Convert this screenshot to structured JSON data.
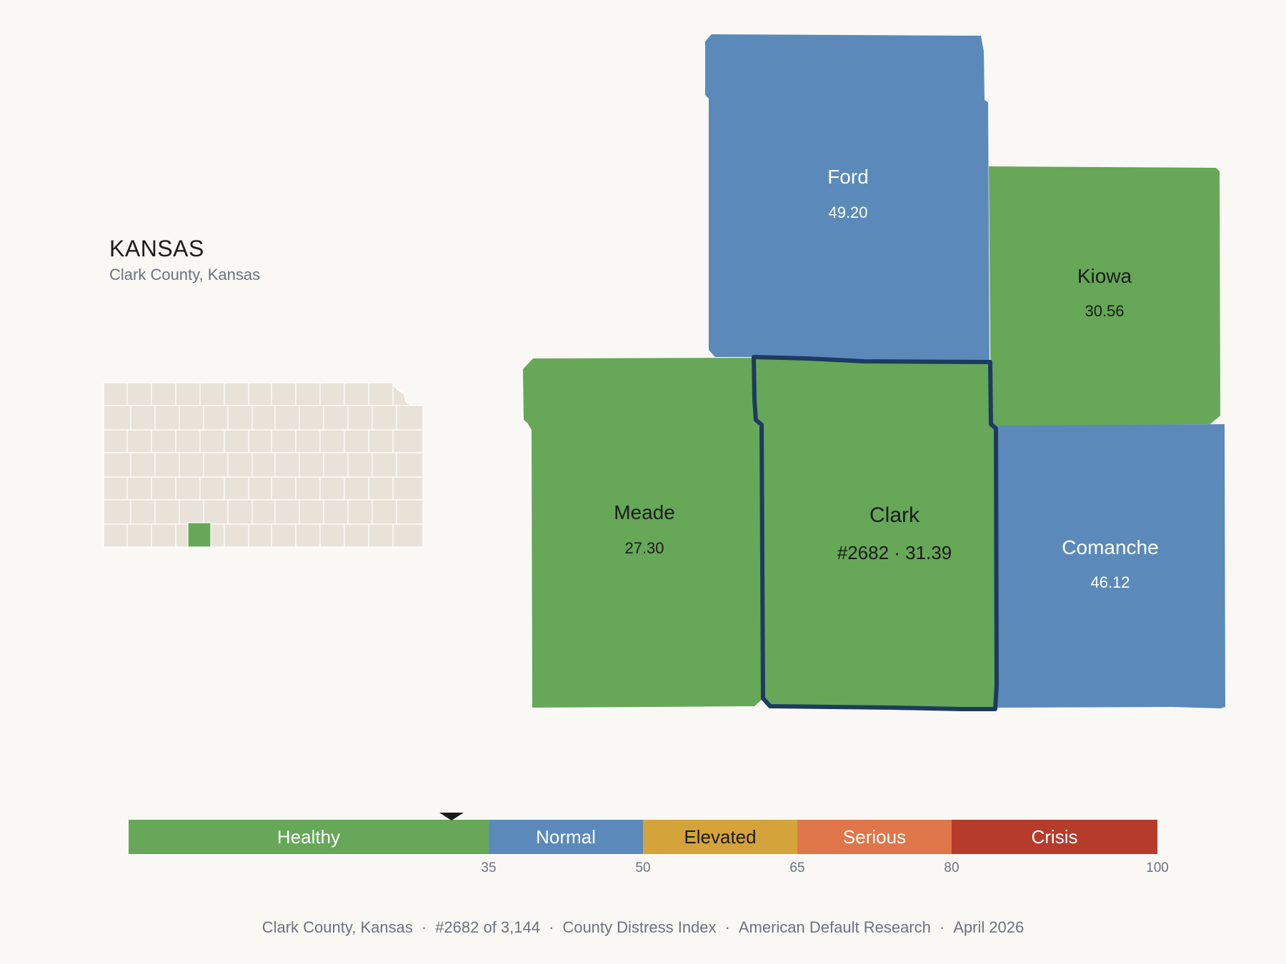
{
  "state": {
    "title": "KANSAS",
    "subtitle": "Clark County, Kansas"
  },
  "selected_county": "Clark",
  "colors": {
    "healthy": "#66a758",
    "normal": "#5b8aba",
    "elevated": "#d4a33a",
    "serious": "#de7649",
    "crisis": "#b73b2b",
    "selected_outline": "#1e3a5f",
    "locator_base": "#e8e2d8",
    "background": "#f9f8f5"
  },
  "counties": [
    {
      "name": "Ford",
      "value": "49.20",
      "category": "normal"
    },
    {
      "name": "Kiowa",
      "value": "30.56",
      "category": "healthy"
    },
    {
      "name": "Meade",
      "value": "27.30",
      "category": "healthy"
    },
    {
      "name": "Clark",
      "value": "#2682 · 31.39",
      "category": "healthy"
    },
    {
      "name": "Comanche",
      "value": "46.12",
      "category": "normal"
    }
  ],
  "scale": {
    "min": 0,
    "max": 100,
    "marker_value": 31.39,
    "segments": [
      {
        "label": "Healthy",
        "from": 0,
        "to": 35,
        "color": "#66a758",
        "text_color": "#ffffff"
      },
      {
        "label": "Normal",
        "from": 35,
        "to": 50,
        "color": "#5b8aba",
        "text_color": "#ffffff"
      },
      {
        "label": "Elevated",
        "from": 50,
        "to": 65,
        "color": "#d4a33a",
        "text_color": "#1b1b1b"
      },
      {
        "label": "Serious",
        "from": 65,
        "to": 80,
        "color": "#de7649",
        "text_color": "#ffffff"
      },
      {
        "label": "Crisis",
        "from": 80,
        "to": 100,
        "color": "#b73b2b",
        "text_color": "#ffffff"
      }
    ],
    "ticks": [
      "35",
      "50",
      "65",
      "80",
      "100"
    ]
  },
  "footer": [
    "Clark County, Kansas",
    "#2682 of 3,144",
    "County Distress Index",
    "American Default Research",
    "April 2026"
  ]
}
